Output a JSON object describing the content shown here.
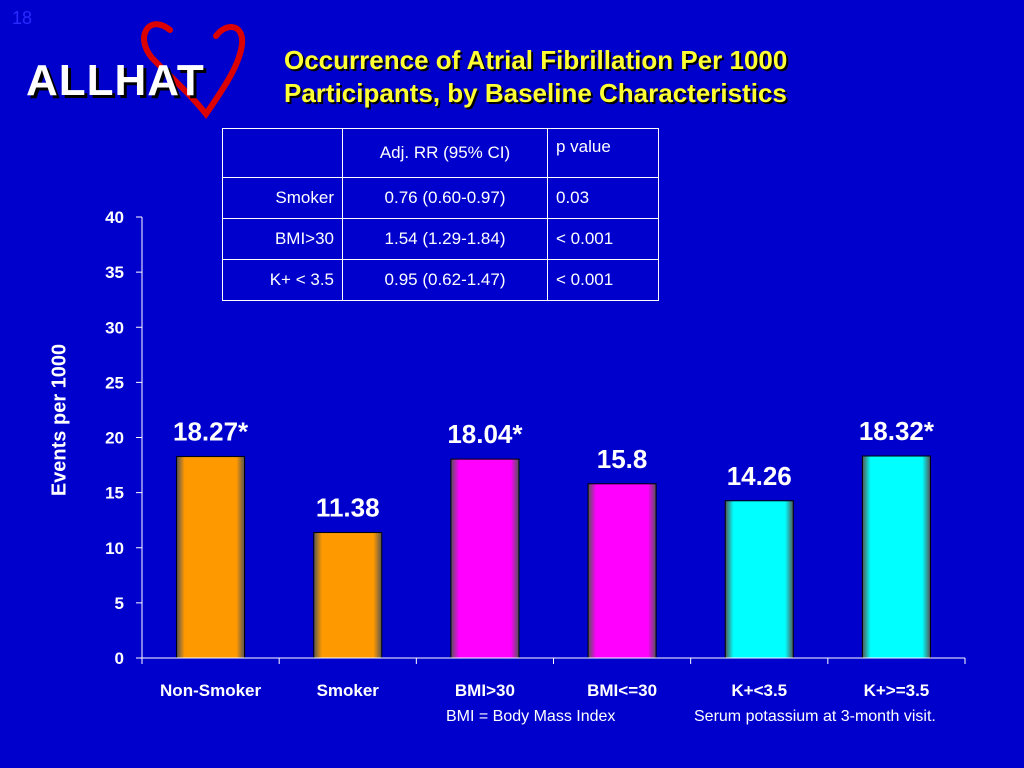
{
  "slide_number": "18",
  "logo": {
    "text": "ALLHAT",
    "heart_color": "#dd0000"
  },
  "title_lines": [
    "Occurrence of Atrial Fibrillation Per 1000",
    "Participants, by Baseline Characteristics"
  ],
  "table": {
    "headers": [
      "",
      "Adj. RR (95% CI)",
      "p value"
    ],
    "rows": [
      [
        "Smoker",
        "0.76 (0.60-0.97)",
        " 0.03"
      ],
      [
        "BMI>30",
        "1.54 (1.29-1.84)",
        "< 0.001"
      ],
      [
        "K+ < 3.5",
        "0.95 (0.62-1.47)",
        "< 0.001"
      ]
    ]
  },
  "chart_data": {
    "type": "bar",
    "categories": [
      "Non-Smoker",
      "Smoker",
      "BMI>30",
      "BMI<=30",
      "K+<3.5",
      "K+>=3.5"
    ],
    "values": [
      18.27,
      11.38,
      18.04,
      15.8,
      14.26,
      18.32
    ],
    "data_labels": [
      "18.27*",
      "11.38",
      "18.04*",
      "15.8",
      "14.26",
      "18.32*"
    ],
    "bar_colors": [
      "#ff9900",
      "#ff9900",
      "#ff00ff",
      "#ff00ff",
      "#00ffff",
      "#00ffff"
    ],
    "ylabel": "Events per 1000",
    "xlabel": "",
    "ylim": [
      0,
      40
    ],
    "yticks": [
      0,
      5,
      10,
      15,
      20,
      25,
      30,
      35,
      40
    ],
    "grid": false,
    "legend": "none"
  },
  "footnotes": {
    "bmi": "BMI = Body Mass Index",
    "potassium": "Serum potassium at 3-month visit."
  }
}
